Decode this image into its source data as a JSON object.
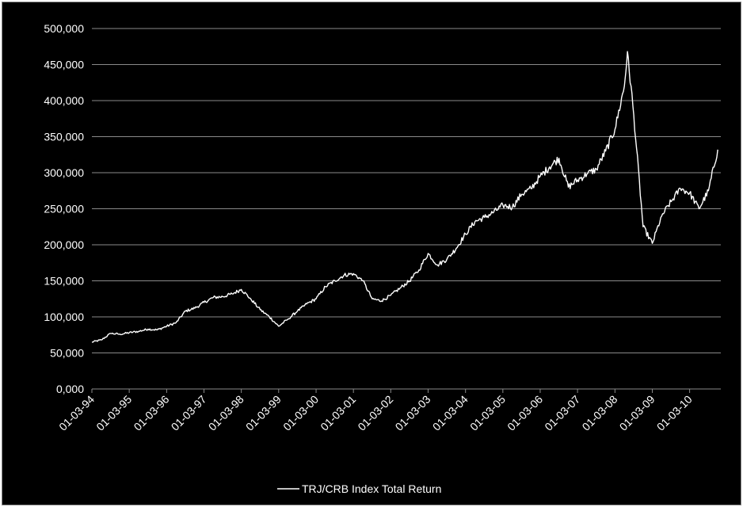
{
  "chart_data": {
    "type": "line",
    "title": "",
    "xlabel": "",
    "ylabel": "",
    "ylim": [
      0,
      500000
    ],
    "y_ticks": [
      0,
      50000,
      100000,
      150000,
      200000,
      250000,
      300000,
      350000,
      400000,
      450000,
      500000
    ],
    "y_tick_labels": [
      "0,000",
      "50,000",
      "100,000",
      "150,000",
      "200,000",
      "250,000",
      "300,000",
      "350,000",
      "400,000",
      "450,000",
      "500,000"
    ],
    "x_tick_labels": [
      "01-03-94",
      "01-03-95",
      "01-03-96",
      "01-03-97",
      "01-03-98",
      "01-03-99",
      "01-03-00",
      "01-03-01",
      "01-03-02",
      "01-03-03",
      "01-03-04",
      "01-03-05",
      "01-03-06",
      "01-03-07",
      "01-03-08",
      "01-03-09",
      "01-03-10"
    ],
    "xlim": [
      "1994-03-01",
      "2010-12-31"
    ],
    "grid": true,
    "legend_position": "bottom",
    "background_color": "#000000",
    "line_color": "#ffffff",
    "series": [
      {
        "name": "TRJ/CRB Index Total Return",
        "x": [
          "1994-03-01",
          "1994-06-01",
          "1994-09-01",
          "1994-12-01",
          "1995-03-01",
          "1995-06-01",
          "1995-09-01",
          "1995-12-01",
          "1996-03-01",
          "1996-06-01",
          "1996-09-01",
          "1996-12-01",
          "1997-03-01",
          "1997-06-01",
          "1997-09-01",
          "1997-12-01",
          "1998-03-01",
          "1998-06-01",
          "1998-09-01",
          "1998-12-01",
          "1999-03-01",
          "1999-06-01",
          "1999-09-01",
          "1999-12-01",
          "2000-03-01",
          "2000-06-01",
          "2000-09-01",
          "2000-12-01",
          "2001-03-01",
          "2001-06-01",
          "2001-09-01",
          "2001-12-01",
          "2002-03-01",
          "2002-06-01",
          "2002-09-01",
          "2002-12-01",
          "2003-03-01",
          "2003-06-01",
          "2003-09-01",
          "2003-12-01",
          "2004-03-01",
          "2004-06-01",
          "2004-09-01",
          "2004-12-01",
          "2005-03-01",
          "2005-06-01",
          "2005-09-01",
          "2005-12-01",
          "2006-03-01",
          "2006-06-01",
          "2006-09-01",
          "2006-12-01",
          "2007-03-01",
          "2007-06-01",
          "2007-09-01",
          "2007-12-01",
          "2008-03-01",
          "2008-06-01",
          "2008-07-01",
          "2008-09-01",
          "2008-12-01",
          "2009-03-01",
          "2009-06-01",
          "2009-09-01",
          "2009-12-01",
          "2010-03-01",
          "2010-06-01",
          "2010-09-01",
          "2010-12-01"
        ],
        "values": [
          65000,
          68000,
          77000,
          76000,
          78000,
          80000,
          83000,
          82000,
          87000,
          92000,
          108000,
          112000,
          120000,
          127000,
          128000,
          132000,
          138000,
          125000,
          110000,
          100000,
          87000,
          97000,
          108000,
          118000,
          125000,
          142000,
          150000,
          158000,
          160000,
          150000,
          125000,
          122000,
          130000,
          140000,
          150000,
          165000,
          188000,
          172000,
          180000,
          195000,
          215000,
          232000,
          238000,
          245000,
          255000,
          252000,
          270000,
          278000,
          295000,
          308000,
          320000,
          280000,
          290000,
          298000,
          305000,
          330000,
          360000,
          420000,
          468000,
          380000,
          225000,
          202000,
          240000,
          260000,
          278000,
          272000,
          250000,
          275000,
          332000
        ]
      }
    ]
  }
}
